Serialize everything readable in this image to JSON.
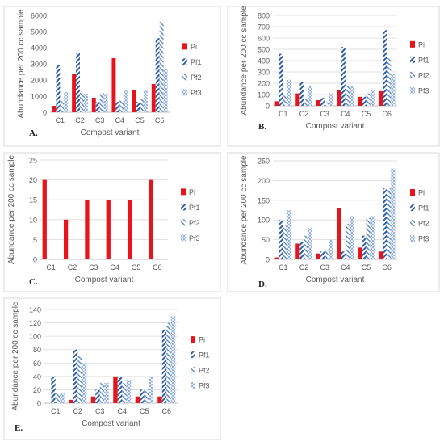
{
  "colors": {
    "Pi": "#e8141b",
    "Pf1": "#2f5fa8",
    "Pf2": "#5b86c5",
    "Pf3": "#7fa3d8",
    "panel_border": "#d9d9d9",
    "grid": "#d9d9d9",
    "text": "#595959"
  },
  "legend_entries": [
    "Pi",
    "Pf1",
    "Pf2",
    "Pf3"
  ],
  "chart_data": [
    {
      "panel_label": "A.",
      "type": "bar",
      "categories": [
        "C1",
        "C2",
        "C3",
        "C4",
        "C5",
        "C6"
      ],
      "series": [
        {
          "name": "Pi",
          "values": [
            400,
            2400,
            900,
            3350,
            1400,
            1750
          ]
        },
        {
          "name": "Pf1",
          "values": [
            2900,
            3650,
            650,
            650,
            650,
            4600
          ]
        },
        {
          "name": "Pf2",
          "values": [
            700,
            1200,
            1200,
            750,
            800,
            5600
          ]
        },
        {
          "name": "Pf3",
          "values": [
            1250,
            1150,
            1150,
            1400,
            1400,
            2700
          ]
        }
      ],
      "ylim": [
        0,
        6000
      ],
      "yticks": [
        "0",
        "1000",
        "2000",
        "3000",
        "4000",
        "5000",
        "6000"
      ],
      "ylabel": "Abundance per 200 cc sample",
      "xlabel": "Compost variant",
      "grid": false,
      "legend": "right"
    },
    {
      "panel_label": "B.",
      "type": "bar",
      "categories": [
        "C1",
        "C2",
        "C3",
        "C4",
        "C5",
        "C6"
      ],
      "series": [
        {
          "name": "Pi",
          "values": [
            40,
            110,
            50,
            140,
            80,
            130
          ]
        },
        {
          "name": "Pf1",
          "values": [
            460,
            210,
            70,
            520,
            80,
            670
          ]
        },
        {
          "name": "Pf2",
          "values": [
            90,
            60,
            30,
            180,
            110,
            420
          ]
        },
        {
          "name": "Pf3",
          "values": [
            230,
            180,
            110,
            180,
            140,
            280
          ]
        }
      ],
      "ylim": [
        0,
        800
      ],
      "yticks": [
        "0",
        "100",
        "200",
        "300",
        "400",
        "500",
        "600",
        "700",
        "800"
      ],
      "ylabel": "Abundance per 200 cc sample",
      "xlabel": "Compost variant",
      "grid": true,
      "legend": "right"
    },
    {
      "panel_label": "C.",
      "type": "bar",
      "categories": [
        "C1",
        "C2",
        "C3",
        "C4",
        "C5",
        "C6"
      ],
      "series": [
        {
          "name": "Pi",
          "values": [
            20,
            10,
            15,
            15,
            15,
            20
          ]
        },
        {
          "name": "Pf1",
          "values": [
            0,
            0,
            0,
            0,
            0,
            0
          ]
        },
        {
          "name": "Pf2",
          "values": [
            0,
            0,
            0,
            0,
            0,
            0
          ]
        },
        {
          "name": "Pf3",
          "values": [
            0,
            0,
            0,
            0,
            0,
            0
          ]
        }
      ],
      "ylim": [
        0,
        25
      ],
      "yticks": [
        "0",
        "5",
        "10",
        "15",
        "20",
        "25"
      ],
      "ylabel": "Abundance per 200 cc sample",
      "xlabel": "Compost variant",
      "grid": true,
      "legend": "right"
    },
    {
      "panel_label": "D.",
      "type": "bar",
      "categories": [
        "C1",
        "C2",
        "C3",
        "C4",
        "C5",
        "C6"
      ],
      "series": [
        {
          "name": "Pi",
          "values": [
            5,
            40,
            15,
            130,
            30,
            20
          ]
        },
        {
          "name": "Pf1",
          "values": [
            100,
            45,
            20,
            20,
            60,
            180
          ]
        },
        {
          "name": "Pf2",
          "values": [
            85,
            60,
            25,
            90,
            105,
            180
          ]
        },
        {
          "name": "Pf3",
          "values": [
            125,
            80,
            50,
            110,
            110,
            230
          ]
        }
      ],
      "ylim": [
        0,
        250
      ],
      "yticks": [
        "0",
        "50",
        "100",
        "150",
        "200",
        "250"
      ],
      "ylabel": "Abundance per 200 cc sample",
      "xlabel": "Compost variant",
      "grid": true,
      "legend": "right"
    },
    {
      "panel_label": "E.",
      "type": "bar",
      "categories": [
        "C1",
        "C2",
        "C3",
        "C4",
        "C5",
        "C6"
      ],
      "series": [
        {
          "name": "Pi",
          "values": [
            0,
            5,
            10,
            40,
            10,
            10
          ]
        },
        {
          "name": "Pf1",
          "values": [
            40,
            80,
            20,
            40,
            20,
            110
          ]
        },
        {
          "name": "Pf2",
          "values": [
            15,
            70,
            30,
            30,
            20,
            120
          ]
        },
        {
          "name": "Pf3",
          "values": [
            15,
            60,
            30,
            35,
            40,
            130
          ]
        }
      ],
      "ylim": [
        0,
        140
      ],
      "yticks": [
        "0",
        "20",
        "40",
        "60",
        "80",
        "100",
        "120",
        "140"
      ],
      "ylabel": "Abundance per 200 cc sample",
      "xlabel": "Compost variant",
      "grid": true,
      "legend": "right"
    }
  ]
}
